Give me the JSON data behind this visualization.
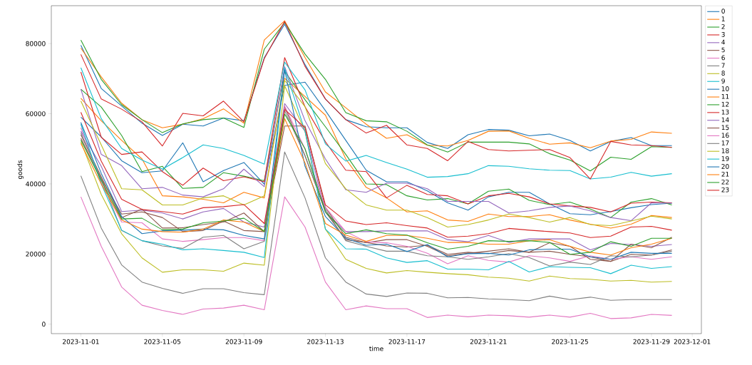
{
  "chart_data": {
    "type": "line",
    "xlabel": "time",
    "ylabel": "goods",
    "x": [
      "2023-11-01",
      "2023-11-02",
      "2023-11-03",
      "2023-11-04",
      "2023-11-05",
      "2023-11-06",
      "2023-11-07",
      "2023-11-08",
      "2023-11-09",
      "2023-11-10",
      "2023-11-11",
      "2023-11-12",
      "2023-11-13",
      "2023-11-14",
      "2023-11-15",
      "2023-11-16",
      "2023-11-17",
      "2023-11-18",
      "2023-11-19",
      "2023-11-20",
      "2023-11-21",
      "2023-11-22",
      "2023-11-23",
      "2023-11-24",
      "2023-11-25",
      "2023-11-26",
      "2023-11-27",
      "2023-11-28",
      "2023-11-29",
      "2023-11-30"
    ],
    "xlim": [
      "2023-10-30T13:12",
      "2023-12-01T10:48"
    ],
    "xticks": [
      "2023-11-01",
      "2023-11-05",
      "2023-11-09",
      "2023-11-13",
      "2023-11-17",
      "2023-11-21",
      "2023-11-25",
      "2023-11-29",
      "2023-12-01"
    ],
    "ylim": [
      -2700,
      90800
    ],
    "yticks": [
      0,
      20000,
      40000,
      60000,
      80000
    ],
    "legend": "top right",
    "series": [
      {
        "name": "0",
        "color": "#1f77b4",
        "values": [
          59000,
          53400,
          46600,
          43200,
          43700,
          51700,
          40600,
          43800,
          46100,
          39900,
          68100,
          69000,
          60900,
          52400,
          43900,
          40600,
          40600,
          38000,
          34600,
          32500,
          36300,
          37600,
          37600,
          34300,
          31500,
          31200,
          32100,
          33200,
          34100,
          34500
        ]
      },
      {
        "name": "1",
        "color": "#ff7f0e",
        "values": [
          64400,
          58000,
          52400,
          47100,
          36600,
          36300,
          35600,
          34600,
          37600,
          36000,
          70100,
          64900,
          59600,
          47100,
          39000,
          36000,
          32000,
          32300,
          29700,
          29300,
          31400,
          30700,
          30700,
          31200,
          29700,
          28500,
          27400,
          28500,
          31000,
          30400
        ]
      },
      {
        "name": "2",
        "color": "#2ca02c",
        "values": [
          67000,
          61900,
          53800,
          43500,
          45000,
          38700,
          39000,
          43200,
          42200,
          40900,
          72100,
          64000,
          56300,
          48400,
          40000,
          39800,
          36600,
          35400,
          35800,
          34300,
          37900,
          38500,
          35300,
          34100,
          34800,
          32800,
          30400,
          34800,
          35800,
          34000
        ]
      },
      {
        "name": "3",
        "color": "#d62728",
        "values": [
          71900,
          53300,
          48400,
          49100,
          43500,
          39600,
          44500,
          40900,
          42000,
          40600,
          76000,
          62000,
          52000,
          43900,
          43500,
          36000,
          39600,
          37000,
          36600,
          34300,
          36600,
          37300,
          36300,
          34300,
          33700,
          33300,
          32000,
          34500,
          34800,
          34600
        ]
      },
      {
        "name": "4",
        "color": "#9467bd",
        "values": [
          67000,
          48400,
          45200,
          38600,
          39000,
          36800,
          36300,
          38600,
          44200,
          39200,
          73400,
          58000,
          47100,
          38300,
          37600,
          40200,
          40200,
          38600,
          35000,
          35000,
          35000,
          31700,
          32300,
          33300,
          33700,
          32300,
          30400,
          29500,
          34600,
          34500
        ]
      },
      {
        "name": "5",
        "color": "#8c564b",
        "values": [
          53000,
          41500,
          31400,
          32000,
          30400,
          26400,
          26700,
          29400,
          26700,
          26400,
          62000,
          48000,
          32000,
          24100,
          23300,
          22300,
          22000,
          22500,
          19900,
          20500,
          20100,
          21000,
          20500,
          20800,
          19900,
          19200,
          17900,
          19900,
          19700,
          21200
        ]
      },
      {
        "name": "6",
        "color": "#e377c2",
        "values": [
          36300,
          22200,
          10600,
          5400,
          3900,
          2800,
          4300,
          4600,
          5400,
          4100,
          36300,
          27700,
          12000,
          4100,
          5200,
          4400,
          4400,
          1900,
          2600,
          2100,
          2600,
          2400,
          2000,
          2600,
          2000,
          3100,
          1600,
          1800,
          2800,
          2500
        ]
      },
      {
        "name": "7",
        "color": "#7f7f7f",
        "values": [
          42300,
          27400,
          16900,
          12000,
          10200,
          8800,
          10100,
          10100,
          9000,
          8400,
          49100,
          36000,
          18900,
          12000,
          8600,
          7900,
          8900,
          8800,
          7500,
          7600,
          7200,
          7000,
          6700,
          8000,
          7000,
          7700,
          6800,
          7000,
          7000,
          7000
        ]
      },
      {
        "name": "8",
        "color": "#bcbd22",
        "values": [
          63600,
          51100,
          38600,
          38300,
          34000,
          34000,
          36000,
          36600,
          34000,
          36600,
          69500,
          62000,
          45800,
          38600,
          34000,
          32500,
          32500,
          30400,
          27700,
          28400,
          29700,
          31400,
          30400,
          29100,
          30400,
          28400,
          28100,
          29400,
          30800,
          30000
        ]
      },
      {
        "name": "9",
        "color": "#17becf",
        "values": [
          73100,
          58600,
          50100,
          46800,
          44200,
          47500,
          51100,
          50100,
          48100,
          45600,
          74700,
          66800,
          51400,
          46500,
          48100,
          46100,
          44200,
          41900,
          42100,
          42900,
          45200,
          45000,
          44300,
          43900,
          43800,
          41400,
          41900,
          43300,
          42200,
          42900
        ]
      },
      {
        "name": "10",
        "color": "#1f77b4",
        "values": [
          79500,
          67200,
          62200,
          57300,
          53800,
          57000,
          56500,
          58800,
          58000,
          76000,
          85500,
          74000,
          64200,
          58300,
          56300,
          56000,
          56000,
          51800,
          50100,
          54000,
          55500,
          55300,
          53700,
          54200,
          52400,
          49400,
          52100,
          53200,
          50900,
          50900
        ]
      },
      {
        "name": "11",
        "color": "#ff7f0e",
        "values": [
          78700,
          70500,
          63000,
          58300,
          56000,
          57000,
          58600,
          61400,
          57300,
          81000,
          86500,
          76000,
          66200,
          61700,
          57000,
          53000,
          54000,
          51000,
          50800,
          52400,
          55000,
          55100,
          53000,
          51300,
          51700,
          50300,
          52200,
          52700,
          54800,
          54400
        ]
      },
      {
        "name": "12",
        "color": "#2ca02c",
        "values": [
          81000,
          69800,
          62600,
          58300,
          54600,
          57100,
          58300,
          58800,
          56100,
          78400,
          86000,
          77000,
          69800,
          60300,
          58000,
          57700,
          55000,
          51100,
          49100,
          51900,
          51900,
          51900,
          51400,
          48600,
          46800,
          43700,
          47600,
          47000,
          50600,
          50400
        ]
      },
      {
        "name": "13",
        "color": "#d62728",
        "values": [
          76900,
          64200,
          61300,
          57700,
          50800,
          60100,
          59400,
          63600,
          57700,
          75700,
          86300,
          73500,
          64200,
          58300,
          54500,
          56700,
          51100,
          50100,
          46600,
          52100,
          49800,
          49400,
          49600,
          49800,
          47500,
          41400,
          52100,
          51100,
          50900,
          50400
        ]
      },
      {
        "name": "14",
        "color": "#9467bd",
        "values": [
          55000,
          45000,
          32100,
          32500,
          31700,
          30000,
          32000,
          33000,
          29100,
          27700,
          62900,
          55000,
          32000,
          26400,
          26400,
          26600,
          26600,
          26600,
          24100,
          23500,
          25300,
          23300,
          24300,
          24300,
          24300,
          21200,
          23000,
          22700,
          22200,
          22700
        ]
      },
      {
        "name": "15",
        "color": "#8c564b",
        "values": [
          54000,
          42000,
          30400,
          32800,
          27400,
          27500,
          28400,
          29100,
          31700,
          26400,
          56500,
          56500,
          33300,
          24800,
          23200,
          24100,
          24100,
          22200,
          19500,
          20200,
          20800,
          21500,
          20500,
          23200,
          22200,
          18500,
          17900,
          22800,
          21800,
          24800
        ]
      },
      {
        "name": "16",
        "color": "#e377c2",
        "values": [
          56000,
          40500,
          29100,
          28900,
          24300,
          23600,
          24100,
          24700,
          24700,
          23800,
          62200,
          50000,
          33300,
          26400,
          23500,
          23200,
          22200,
          20200,
          17200,
          19500,
          18200,
          17700,
          19500,
          18900,
          17900,
          19500,
          18500,
          19200,
          18500,
          19200
        ]
      },
      {
        "name": "17",
        "color": "#7f7f7f",
        "values": [
          54500,
          41500,
          26700,
          23800,
          22300,
          21600,
          24800,
          25300,
          21500,
          23600,
          60900,
          48000,
          32700,
          23800,
          22200,
          20800,
          20800,
          19500,
          19200,
          18500,
          19200,
          20100,
          19000,
          16600,
          17700,
          17000,
          19500,
          19200,
          19700,
          20800
        ]
      },
      {
        "name": "18",
        "color": "#bcbd22",
        "values": [
          52000,
          37000,
          25800,
          18900,
          14800,
          15500,
          15500,
          15100,
          17400,
          16800,
          68000,
          55000,
          27100,
          18500,
          15900,
          14600,
          15300,
          14800,
          14400,
          14100,
          13400,
          13100,
          12300,
          13700,
          13000,
          12800,
          12300,
          12500,
          12000,
          12200
        ]
      },
      {
        "name": "19",
        "color": "#17becf",
        "values": [
          57000,
          40000,
          26800,
          23800,
          22800,
          21200,
          21500,
          21000,
          20500,
          19000,
          73000,
          55000,
          27100,
          21500,
          21400,
          18900,
          17600,
          18100,
          15700,
          15700,
          15500,
          17900,
          14900,
          16400,
          16200,
          16100,
          14400,
          16800,
          15900,
          16400
        ]
      },
      {
        "name": "20",
        "color": "#1f77b4",
        "values": [
          57500,
          43000,
          30700,
          25800,
          26600,
          26800,
          27100,
          26900,
          25300,
          24300,
          72500,
          45000,
          30700,
          24500,
          22500,
          22800,
          20700,
          22700,
          19200,
          20100,
          20200,
          19700,
          21200,
          21400,
          21400,
          19200,
          18500,
          20500,
          20200,
          20200
        ]
      },
      {
        "name": "21",
        "color": "#ff7f0e",
        "values": [
          51500,
          40000,
          29700,
          27100,
          26400,
          26200,
          27100,
          29700,
          29100,
          26400,
          58600,
          46000,
          28700,
          25400,
          23600,
          25300,
          25300,
          24500,
          23300,
          23300,
          22800,
          22800,
          23800,
          24100,
          22200,
          20500,
          19700,
          21800,
          22800,
          24500
        ]
      },
      {
        "name": "22",
        "color": "#2ca02c",
        "values": [
          52500,
          41000,
          30000,
          30200,
          26900,
          27100,
          28900,
          29400,
          30200,
          26400,
          59900,
          50000,
          32000,
          25800,
          26900,
          25800,
          25400,
          23200,
          21400,
          22200,
          23800,
          23600,
          23800,
          23300,
          19900,
          20500,
          23500,
          22200,
          24500,
          24500
        ]
      },
      {
        "name": "23",
        "color": "#d62728",
        "values": [
          60400,
          46500,
          35600,
          32700,
          32100,
          31400,
          33200,
          33500,
          34100,
          28700,
          61200,
          56000,
          34000,
          29400,
          28400,
          28900,
          28100,
          27400,
          24800,
          25100,
          25800,
          27300,
          26800,
          26400,
          26000,
          24700,
          25100,
          27700,
          27900,
          26800
        ]
      }
    ]
  }
}
